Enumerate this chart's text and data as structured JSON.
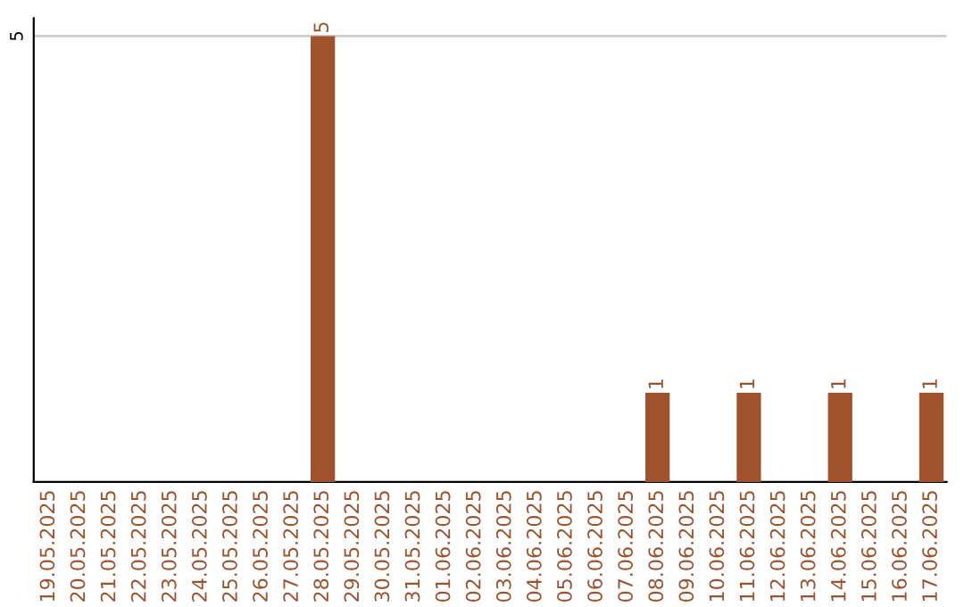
{
  "chart_data": {
    "type": "bar",
    "categories": [
      "19.05.2025",
      "20.05.2025",
      "21.05.2025",
      "22.05.2025",
      "23.05.2025",
      "24.05.2025",
      "25.05.2025",
      "26.05.2025",
      "27.05.2025",
      "28.05.2025",
      "29.05.2025",
      "30.05.2025",
      "31.05.2025",
      "01.06.2025",
      "02.06.2025",
      "03.06.2025",
      "04.06.2025",
      "05.06.2025",
      "06.06.2025",
      "07.06.2025",
      "08.06.2025",
      "09.06.2025",
      "10.06.2025",
      "11.06.2025",
      "12.06.2025",
      "13.06.2025",
      "14.06.2025",
      "15.06.2025",
      "16.06.2025",
      "17.06.2025"
    ],
    "values": [
      0,
      0,
      0,
      0,
      0,
      0,
      0,
      0,
      0,
      5,
      0,
      0,
      0,
      0,
      0,
      0,
      0,
      0,
      0,
      0,
      1,
      0,
      0,
      1,
      0,
      0,
      1,
      0,
      0,
      1
    ],
    "value_labels": [
      null,
      null,
      null,
      null,
      null,
      null,
      null,
      null,
      null,
      "5",
      null,
      null,
      null,
      null,
      null,
      null,
      null,
      null,
      null,
      null,
      "1",
      null,
      null,
      "1",
      null,
      null,
      "1",
      null,
      null,
      "1"
    ],
    "color": "#a0522d",
    "ylim": [
      0,
      5.2
    ],
    "yticks": [
      5
    ],
    "grid": "y"
  }
}
